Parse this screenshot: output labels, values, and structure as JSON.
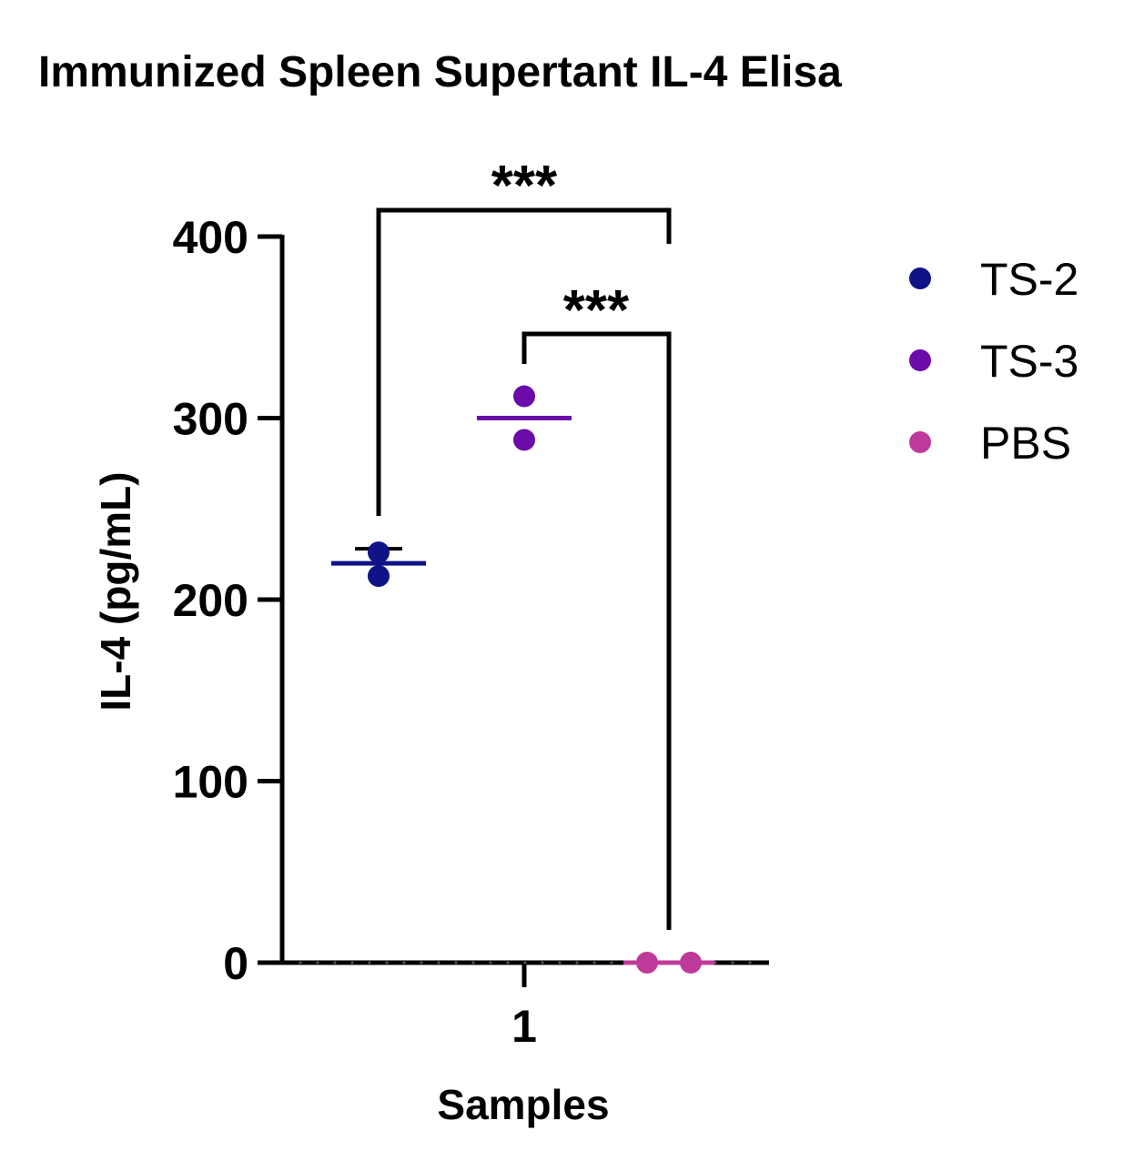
{
  "chart_data": {
    "type": "scatter",
    "title": "Immunized Spleen Supertant IL-4 Elisa",
    "xlabel": "Samples",
    "ylabel": "IL-4 (pg/mL)",
    "categories": [
      "1"
    ],
    "ylim": [
      0,
      400
    ],
    "yticks": [
      "0",
      "100",
      "200",
      "300",
      "400"
    ],
    "legend_position": "top-right",
    "series": [
      {
        "name": "TS-2",
        "color": "#101385",
        "points": [
          226,
          213
        ],
        "mean": 220,
        "error_upper": 228
      },
      {
        "name": "TS-3",
        "color": "#6A0BAA",
        "points": [
          312,
          288
        ],
        "mean": 300
      },
      {
        "name": "PBS",
        "color": "#BE3A9A",
        "points": [
          0,
          0
        ],
        "mean": 0
      }
    ],
    "annotations": [
      {
        "label": "***",
        "from": "TS-2",
        "to": "PBS"
      },
      {
        "label": "***",
        "from": "TS-3",
        "to": "PBS"
      }
    ]
  }
}
